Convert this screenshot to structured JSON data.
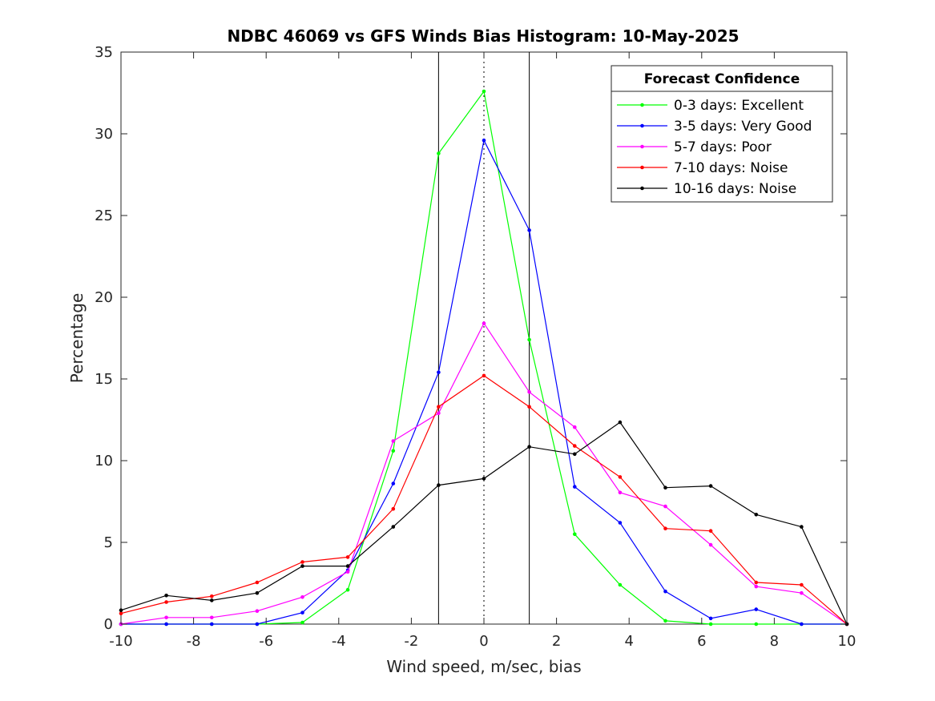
{
  "chart_data": {
    "type": "line",
    "title": "NDBC 46069 vs GFS Winds Bias Histogram: 10-May-2025",
    "xlabel": "Wind speed, m/sec, bias",
    "ylabel": "Percentage",
    "xlim": [
      -10,
      10
    ],
    "ylim": [
      0,
      35
    ],
    "xticks": [
      -10,
      -8,
      -6,
      -4,
      -2,
      0,
      2,
      4,
      6,
      8,
      10
    ],
    "yticks": [
      0,
      5,
      10,
      15,
      20,
      25,
      30,
      35
    ],
    "vertical_lines": [
      {
        "x": -1.25,
        "style": "solid"
      },
      {
        "x": 0,
        "style": "dotted"
      },
      {
        "x": 1.25,
        "style": "solid"
      }
    ],
    "legend": {
      "title": "Forecast Confidence",
      "position": "top-right"
    },
    "x": [
      -10,
      -8.75,
      -7.5,
      -6.25,
      -5,
      -3.75,
      -2.5,
      -1.25,
      0,
      1.25,
      2.5,
      3.75,
      5,
      6.25,
      7.5,
      8.75,
      10
    ],
    "series": [
      {
        "name": "0-3 days: Excellent",
        "color": "#00ff00",
        "values": [
          0,
          0,
          0,
          0,
          0.1,
          2.1,
          10.6,
          28.8,
          32.6,
          17.4,
          5.5,
          2.4,
          0.2,
          0,
          0,
          0,
          0
        ]
      },
      {
        "name": "3-5 days: Very Good",
        "color": "#0000ff",
        "values": [
          0,
          0,
          0,
          0,
          0.7,
          3.3,
          8.6,
          15.4,
          29.6,
          24.1,
          8.4,
          6.2,
          2.0,
          0.35,
          0.9,
          0,
          0
        ]
      },
      {
        "name": "5-7 days: Poor",
        "color": "#ff00ff",
        "values": [
          0,
          0.4,
          0.4,
          0.8,
          1.65,
          3.2,
          11.2,
          12.9,
          18.4,
          14.2,
          12.05,
          8.05,
          7.2,
          4.85,
          2.3,
          1.9,
          0
        ]
      },
      {
        "name": "7-10 days: Noise",
        "color": "#ff0000",
        "values": [
          0.65,
          1.35,
          1.7,
          2.55,
          3.8,
          4.1,
          7.05,
          13.3,
          15.2,
          13.3,
          10.9,
          9.0,
          5.85,
          5.7,
          2.55,
          2.4,
          0
        ]
      },
      {
        "name": "10-16 days: Noise",
        "color": "#000000",
        "values": [
          0.85,
          1.75,
          1.45,
          1.9,
          3.55,
          3.55,
          5.95,
          8.5,
          8.9,
          10.85,
          10.4,
          12.35,
          8.35,
          8.45,
          6.7,
          5.95,
          0
        ]
      }
    ]
  }
}
